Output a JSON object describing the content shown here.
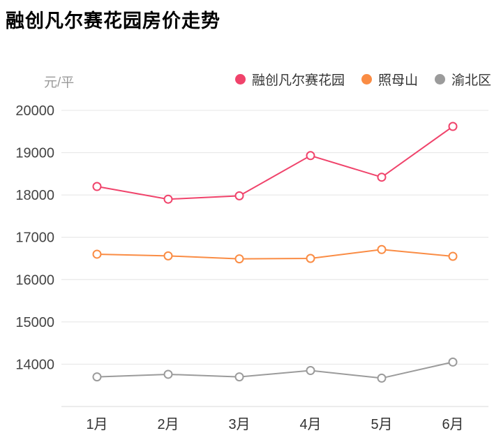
{
  "page": {
    "background": "#ffffff",
    "grid_color": "#e4e4e4",
    "axis_color": "#d9d9d9",
    "tick_label_color": "#444444",
    "x_label_color": "#333333"
  },
  "chart_data": {
    "type": "line",
    "title": "融创凡尔赛花园房价走势",
    "ylabel": "元/平",
    "xlabel": "",
    "categories": [
      "1月",
      "2月",
      "3月",
      "4月",
      "5月",
      "6月"
    ],
    "y_ticks": [
      20000,
      19000,
      18000,
      17000,
      16000,
      15000,
      14000
    ],
    "ylim": [
      13000,
      20000
    ],
    "grid": true,
    "legend_position": "top",
    "marker": "hollow-circle",
    "series": [
      {
        "name": "融创凡尔赛花园",
        "color": "#f0436b",
        "values": [
          18200,
          17900,
          17980,
          18930,
          18420,
          19620
        ]
      },
      {
        "name": "照母山",
        "color": "#fa8c44",
        "values": [
          16600,
          16560,
          16490,
          16500,
          16710,
          16550
        ]
      },
      {
        "name": "渝北区",
        "color": "#9b9b9b",
        "values": [
          13700,
          13760,
          13700,
          13850,
          13670,
          14050
        ]
      }
    ]
  }
}
